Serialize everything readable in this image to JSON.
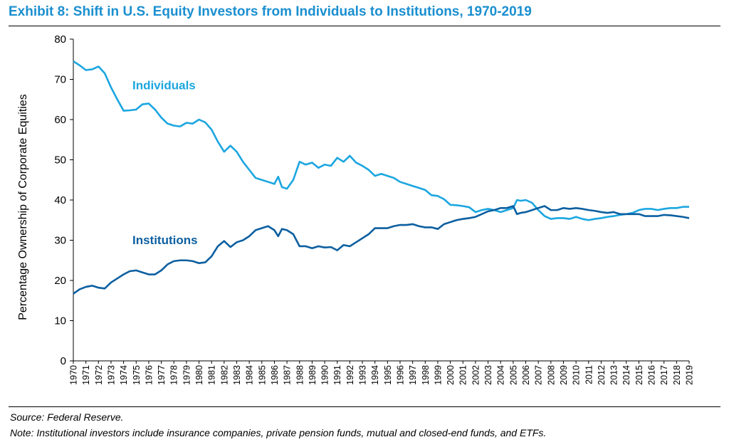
{
  "title": "Exhibit 8: Shift in U.S. Equity Investors from Individuals to Institutions, 1970-2019",
  "source": "Source: Federal Reserve.",
  "note": "Note: Institutional investors include insurance companies, private pension funds, mutual and closed-end funds, and ETFs.",
  "chart_data": {
    "type": "line",
    "title": "Exhibit 8: Shift in U.S. Equity Investors from Individuals to Institutions, 1970-2019",
    "xlabel": "",
    "ylabel": "Percentage Ownership of Corporate Equities",
    "ylim": [
      0,
      80
    ],
    "yticks": [
      0,
      10,
      20,
      30,
      40,
      50,
      60,
      70,
      80
    ],
    "xlim": [
      1970,
      2019
    ],
    "xticks": [
      1970,
      1971,
      1972,
      1973,
      1974,
      1975,
      1976,
      1977,
      1978,
      1979,
      1980,
      1981,
      1982,
      1983,
      1984,
      1985,
      1986,
      1987,
      1988,
      1989,
      1990,
      1991,
      1992,
      1993,
      1994,
      1995,
      1996,
      1997,
      1998,
      1999,
      2000,
      2001,
      2002,
      2003,
      2004,
      2005,
      2006,
      2007,
      2008,
      2009,
      2010,
      2011,
      2012,
      2013,
      2014,
      2015,
      2016,
      2017,
      2018,
      2019
    ],
    "grid": false,
    "legend": "inline labels",
    "series": [
      {
        "name": "Individuals",
        "color": "#1ba6e0",
        "points": [
          [
            1970,
            74.5
          ],
          [
            1970.5,
            73.5
          ],
          [
            1971,
            72.3
          ],
          [
            1971.5,
            72.5
          ],
          [
            1972,
            73.2
          ],
          [
            1972.5,
            71.5
          ],
          [
            1973,
            68
          ],
          [
            1973.5,
            65
          ],
          [
            1974,
            62.2
          ],
          [
            1974.5,
            62.3
          ],
          [
            1975,
            62.5
          ],
          [
            1975.5,
            63.8
          ],
          [
            1976,
            64
          ],
          [
            1976.5,
            62.5
          ],
          [
            1977,
            60.5
          ],
          [
            1977.5,
            59
          ],
          [
            1978,
            58.5
          ],
          [
            1978.5,
            58.3
          ],
          [
            1979,
            59.2
          ],
          [
            1979.5,
            59
          ],
          [
            1980,
            60
          ],
          [
            1980.5,
            59.3
          ],
          [
            1981,
            57.5
          ],
          [
            1981.5,
            54.5
          ],
          [
            1982,
            52
          ],
          [
            1982.5,
            53.5
          ],
          [
            1983,
            52
          ],
          [
            1983.5,
            49.5
          ],
          [
            1984,
            47.5
          ],
          [
            1984.5,
            45.5
          ],
          [
            1985,
            45
          ],
          [
            1985.5,
            44.5
          ],
          [
            1986,
            44
          ],
          [
            1986.3,
            45.8
          ],
          [
            1986.6,
            43.2
          ],
          [
            1987,
            42.8
          ],
          [
            1987.5,
            45
          ],
          [
            1988,
            49.5
          ],
          [
            1988.5,
            48.8
          ],
          [
            1989,
            49.3
          ],
          [
            1989.5,
            48
          ],
          [
            1990,
            48.8
          ],
          [
            1990.5,
            48.5
          ],
          [
            1991,
            50.5
          ],
          [
            1991.5,
            49.5
          ],
          [
            1992,
            51
          ],
          [
            1992.5,
            49.3
          ],
          [
            1993,
            48.5
          ],
          [
            1993.5,
            47.5
          ],
          [
            1994,
            46
          ],
          [
            1994.5,
            46.5
          ],
          [
            1995,
            46
          ],
          [
            1995.5,
            45.5
          ],
          [
            1996,
            44.5
          ],
          [
            1996.5,
            44
          ],
          [
            1997,
            43.5
          ],
          [
            1997.5,
            43
          ],
          [
            1998,
            42.5
          ],
          [
            1998.5,
            41.2
          ],
          [
            1999,
            41
          ],
          [
            1999.5,
            40.2
          ],
          [
            2000,
            38.8
          ],
          [
            2000.5,
            38.7
          ],
          [
            2001,
            38.5
          ],
          [
            2001.5,
            38.2
          ],
          [
            2002,
            37
          ],
          [
            2002.5,
            37.5
          ],
          [
            2003,
            37.8
          ],
          [
            2003.5,
            37.5
          ],
          [
            2004,
            37
          ],
          [
            2004.5,
            37.5
          ],
          [
            2005,
            38
          ],
          [
            2005.3,
            40
          ],
          [
            2005.6,
            39.8
          ],
          [
            2006,
            40
          ],
          [
            2006.5,
            39.3
          ],
          [
            2007,
            37.5
          ],
          [
            2007.5,
            36
          ],
          [
            2008,
            35.3
          ],
          [
            2008.5,
            35.5
          ],
          [
            2009,
            35.5
          ],
          [
            2009.5,
            35.3
          ],
          [
            2010,
            35.8
          ],
          [
            2010.5,
            35.3
          ],
          [
            2011,
            35
          ],
          [
            2011.5,
            35.3
          ],
          [
            2012,
            35.5
          ],
          [
            2012.5,
            35.8
          ],
          [
            2013,
            36
          ],
          [
            2013.5,
            36.3
          ],
          [
            2014,
            36.5
          ],
          [
            2014.5,
            36.8
          ],
          [
            2015,
            37.5
          ],
          [
            2015.5,
            37.8
          ],
          [
            2016,
            37.8
          ],
          [
            2016.5,
            37.5
          ],
          [
            2017,
            37.8
          ],
          [
            2017.5,
            38
          ],
          [
            2018,
            38
          ],
          [
            2018.5,
            38.3
          ],
          [
            2019,
            38.3
          ]
        ]
      },
      {
        "name": "Institutions",
        "color": "#0c5fa0",
        "points": [
          [
            1970,
            16.7
          ],
          [
            1970.5,
            17.8
          ],
          [
            1971,
            18.4
          ],
          [
            1971.5,
            18.7
          ],
          [
            1972,
            18.2
          ],
          [
            1972.5,
            18
          ],
          [
            1973,
            19.5
          ],
          [
            1973.5,
            20.5
          ],
          [
            1974,
            21.5
          ],
          [
            1974.5,
            22.3
          ],
          [
            1975,
            22.5
          ],
          [
            1975.5,
            22
          ],
          [
            1976,
            21.5
          ],
          [
            1976.5,
            21.5
          ],
          [
            1977,
            22.5
          ],
          [
            1977.5,
            24
          ],
          [
            1978,
            24.8
          ],
          [
            1978.5,
            25
          ],
          [
            1979,
            25
          ],
          [
            1979.5,
            24.8
          ],
          [
            1980,
            24.3
          ],
          [
            1980.5,
            24.5
          ],
          [
            1981,
            26
          ],
          [
            1981.5,
            28.5
          ],
          [
            1982,
            29.8
          ],
          [
            1982.5,
            28.3
          ],
          [
            1983,
            29.5
          ],
          [
            1983.5,
            30
          ],
          [
            1984,
            31
          ],
          [
            1984.5,
            32.5
          ],
          [
            1985,
            33
          ],
          [
            1985.5,
            33.5
          ],
          [
            1986,
            32.5
          ],
          [
            1986.3,
            31
          ],
          [
            1986.6,
            32.8
          ],
          [
            1987,
            32.5
          ],
          [
            1987.5,
            31.5
          ],
          [
            1988,
            28.5
          ],
          [
            1988.5,
            28.5
          ],
          [
            1989,
            28
          ],
          [
            1989.5,
            28.5
          ],
          [
            1990,
            28.2
          ],
          [
            1990.5,
            28.3
          ],
          [
            1991,
            27.5
          ],
          [
            1991.5,
            28.8
          ],
          [
            1992,
            28.5
          ],
          [
            1992.5,
            29.5
          ],
          [
            1993,
            30.5
          ],
          [
            1993.5,
            31.5
          ],
          [
            1994,
            33
          ],
          [
            1994.5,
            33
          ],
          [
            1995,
            33
          ],
          [
            1995.5,
            33.5
          ],
          [
            1996,
            33.8
          ],
          [
            1996.5,
            33.8
          ],
          [
            1997,
            34
          ],
          [
            1997.5,
            33.5
          ],
          [
            1998,
            33.2
          ],
          [
            1998.5,
            33.2
          ],
          [
            1999,
            32.8
          ],
          [
            1999.5,
            34
          ],
          [
            2000,
            34.5
          ],
          [
            2000.5,
            35
          ],
          [
            2001,
            35.3
          ],
          [
            2001.5,
            35.5
          ],
          [
            2002,
            35.8
          ],
          [
            2002.5,
            36.5
          ],
          [
            2003,
            37.2
          ],
          [
            2003.5,
            37.5
          ],
          [
            2004,
            38
          ],
          [
            2004.5,
            38
          ],
          [
            2005,
            38.5
          ],
          [
            2005.3,
            36.5
          ],
          [
            2005.6,
            36.8
          ],
          [
            2006,
            37
          ],
          [
            2006.5,
            37.5
          ],
          [
            2007,
            38
          ],
          [
            2007.5,
            38.5
          ],
          [
            2008,
            37.5
          ],
          [
            2008.5,
            37.5
          ],
          [
            2009,
            38
          ],
          [
            2009.5,
            37.8
          ],
          [
            2010,
            38
          ],
          [
            2010.5,
            37.8
          ],
          [
            2011,
            37.5
          ],
          [
            2011.5,
            37.3
          ],
          [
            2012,
            37
          ],
          [
            2012.5,
            36.8
          ],
          [
            2013,
            37
          ],
          [
            2013.5,
            36.5
          ],
          [
            2014,
            36.5
          ],
          [
            2014.5,
            36.5
          ],
          [
            2015,
            36.5
          ],
          [
            2015.5,
            36
          ],
          [
            2016,
            36
          ],
          [
            2016.5,
            36
          ],
          [
            2017,
            36.3
          ],
          [
            2017.5,
            36.2
          ],
          [
            2018,
            36
          ],
          [
            2018.5,
            35.8
          ],
          [
            2019,
            35.5
          ]
        ]
      }
    ]
  }
}
